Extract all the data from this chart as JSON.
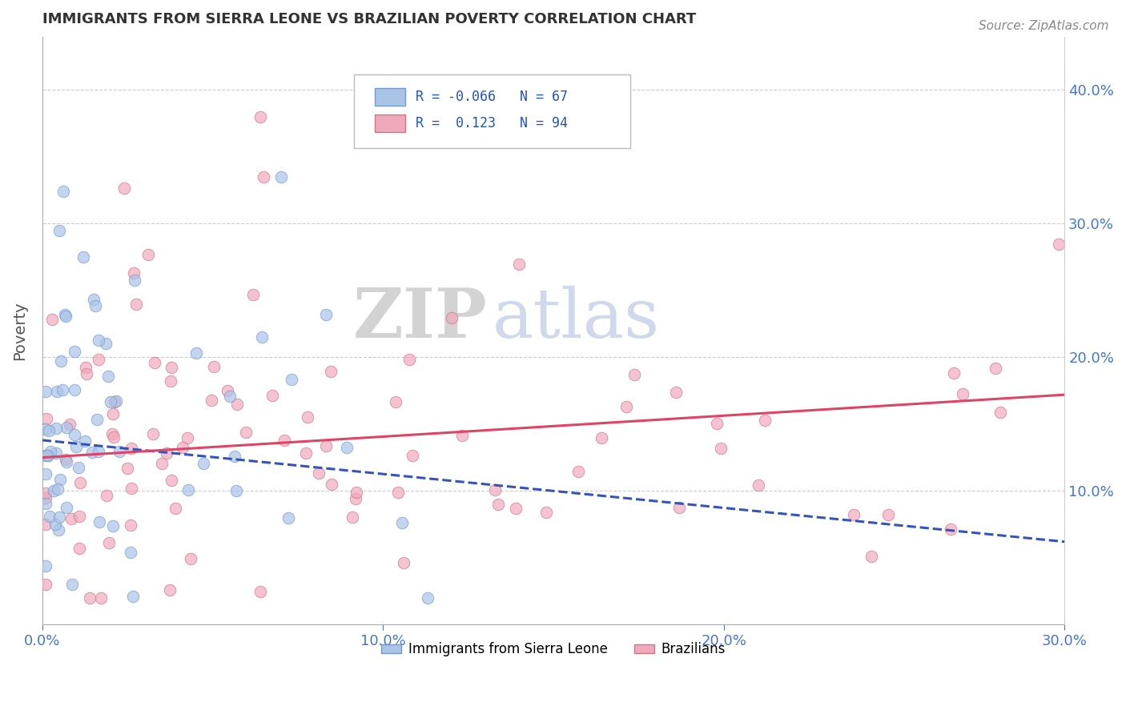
{
  "title": "IMMIGRANTS FROM SIERRA LEONE VS BRAZILIAN POVERTY CORRELATION CHART",
  "source_text": "Source: ZipAtlas.com",
  "ylabel": "Poverty",
  "x_min": 0.0,
  "x_max": 0.3,
  "y_min": 0.0,
  "y_max": 0.44,
  "x_tick_labels": [
    "0.0%",
    "10.0%",
    "20.0%",
    "30.0%"
  ],
  "x_tick_values": [
    0.0,
    0.1,
    0.2,
    0.3
  ],
  "y_tick_labels": [
    "10.0%",
    "20.0%",
    "30.0%",
    "40.0%"
  ],
  "y_tick_values": [
    0.1,
    0.2,
    0.3,
    0.4
  ],
  "sierra_leone_color": "#aac4e8",
  "sierra_leone_edge": "#7799cc",
  "brazilians_color": "#f0a8bc",
  "brazilians_edge": "#cc7788",
  "trend_sierra_leone_color": "#3355bb",
  "trend_brazilians_color": "#dd4466",
  "R_sierra": -0.066,
  "N_sierra": 67,
  "R_brazil": 0.123,
  "N_brazil": 94,
  "legend_label_sierra": "Immigrants from Sierra Leone",
  "legend_label_brazil": "Brazilians",
  "watermark_ZIP": "ZIP",
  "watermark_atlas": "atlas",
  "title_color": "#333333",
  "axis_label_color": "#555555",
  "grid_color": "#cccccc",
  "tick_label_color": "#4477cc",
  "legend_text_color": "#2255bb"
}
